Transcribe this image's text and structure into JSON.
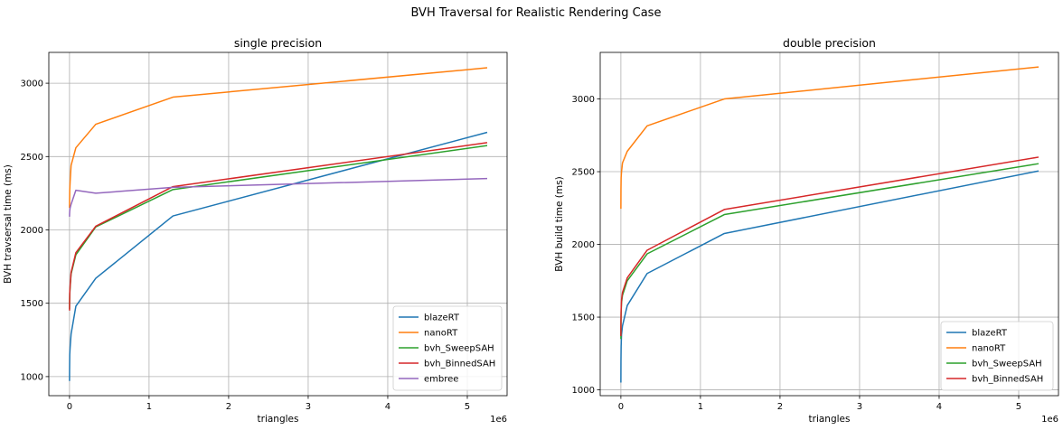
{
  "figure": {
    "suptitle": "BVH Traversal for Realistic Rendering Case"
  },
  "chart_data": [
    {
      "type": "line",
      "title": "single precision",
      "xlabel": "triangles",
      "ylabel": "BVH travsersal time (ms)",
      "x_offset_text": "1e6",
      "xlim": [
        -0.26,
        5.5
      ],
      "ylim": [
        870,
        3210
      ],
      "xticks": [
        0,
        1,
        2,
        3,
        4,
        5
      ],
      "yticks": [
        1000,
        1500,
        2000,
        2500,
        3000
      ],
      "grid": true,
      "legend_position": "bottom-right",
      "x": [
        0,
        0.001,
        0.003,
        0.008,
        0.02,
        0.08,
        0.33,
        1.3,
        5.25
      ],
      "series": [
        {
          "name": "blazeRT",
          "color": "#1f77b4",
          "values": [
            970,
            1050,
            1150,
            1200,
            1290,
            1480,
            1670,
            2095,
            2665
          ]
        },
        {
          "name": "nanoRT",
          "color": "#ff7f0e",
          "values": [
            2150,
            2200,
            2270,
            2330,
            2440,
            2560,
            2720,
            2905,
            3105
          ]
        },
        {
          "name": "bvh_SweepSAH",
          "color": "#2ca02c",
          "values": [
            1460,
            1500,
            1560,
            1610,
            1700,
            1830,
            2020,
            2275,
            2575
          ]
        },
        {
          "name": "bvh_BinnedSAH",
          "color": "#d62728",
          "values": [
            1450,
            1510,
            1570,
            1620,
            1710,
            1845,
            2025,
            2295,
            2595
          ]
        },
        {
          "name": "embree",
          "color": "#9467bd",
          "values": [
            2090,
            2110,
            2130,
            2150,
            2175,
            2270,
            2250,
            2290,
            2350
          ]
        }
      ]
    },
    {
      "type": "line",
      "title": "double precision",
      "xlabel": "triangles",
      "ylabel": "BVH build time (ms)",
      "x_offset_text": "1e6",
      "xlim": [
        -0.26,
        5.5
      ],
      "ylim": [
        960,
        3320
      ],
      "xticks": [
        0,
        1,
        2,
        3,
        4,
        5
      ],
      "yticks": [
        1000,
        1500,
        2000,
        2500,
        3000
      ],
      "grid": true,
      "legend_position": "bottom-right",
      "x": [
        0,
        0.001,
        0.003,
        0.008,
        0.02,
        0.08,
        0.33,
        1.3,
        5.25
      ],
      "series": [
        {
          "name": "blazeRT",
          "color": "#1f77b4",
          "values": [
            1050,
            1200,
            1300,
            1380,
            1440,
            1580,
            1800,
            2075,
            2505
          ]
        },
        {
          "name": "nanoRT",
          "color": "#ff7f0e",
          "values": [
            2245,
            2380,
            2460,
            2500,
            2560,
            2640,
            2815,
            3000,
            3220
          ]
        },
        {
          "name": "bvh_SweepSAH",
          "color": "#2ca02c",
          "values": [
            1350,
            1450,
            1530,
            1600,
            1650,
            1750,
            1935,
            2205,
            2555
          ]
        },
        {
          "name": "bvh_BinnedSAH",
          "color": "#d62728",
          "values": [
            1370,
            1470,
            1550,
            1620,
            1670,
            1770,
            1960,
            2240,
            2600
          ]
        }
      ]
    }
  ]
}
